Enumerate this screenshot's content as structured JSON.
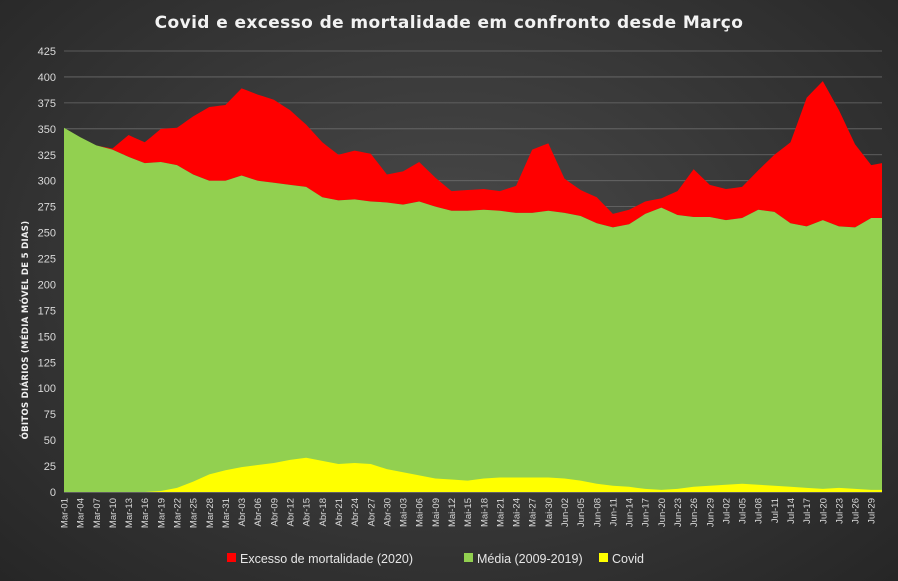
{
  "chart_data": {
    "type": "area",
    "title": "Covid  e  excesso  de  mortalidade  em  confronto  desde  Março",
    "ylabel": "ÓBITOS DIÁRIOS  (MÉDIA MÓVEL DE 5 DIAS)",
    "ylim": [
      0,
      425
    ],
    "yticks": [
      0,
      25,
      50,
      75,
      100,
      125,
      150,
      175,
      200,
      225,
      250,
      275,
      300,
      325,
      350,
      375,
      400,
      425
    ],
    "x_start": "Mar-01",
    "x_end": "Jul-31",
    "x_tick_labels": [
      "Mar-01",
      "Mar-04",
      "Mar-07",
      "Mar-10",
      "Mar-13",
      "Mar-16",
      "Mar-19",
      "Mar-22",
      "Mar-25",
      "Mar-28",
      "Mar-31",
      "Abr-03",
      "Abr-06",
      "Abr-09",
      "Abr-12",
      "Abr-15",
      "Abr-18",
      "Abr-21",
      "Abr-24",
      "Abr-27",
      "Abr-30",
      "Mai-03",
      "Mai-06",
      "Mai-09",
      "Mai-12",
      "Mai-15",
      "Mai-18",
      "Mai-21",
      "Mai-24",
      "Mai-27",
      "Mai-30",
      "Jun-02",
      "Jun-05",
      "Jun-08",
      "Jun-11",
      "Jun-14",
      "Jun-17",
      "Jun-20",
      "Jun-23",
      "Jun-26",
      "Jun-29",
      "Jul-02",
      "Jul-05",
      "Jul-08",
      "Jul-11",
      "Jul-14",
      "Jul-17",
      "Jul-20",
      "Jul-23",
      "Jul-26",
      "Jul-29"
    ],
    "legend_position": "bottom",
    "grid": true,
    "series": [
      {
        "name": "Excesso de mortalidade (2020)",
        "color": "#ff0000",
        "description": "Total 2020 (top of red area)",
        "points": [
          [
            "Mar-01",
            351
          ],
          [
            "Mar-04",
            342
          ],
          [
            "Mar-07",
            334
          ],
          [
            "Mar-10",
            331
          ],
          [
            "Mar-13",
            344
          ],
          [
            "Mar-16",
            337
          ],
          [
            "Mar-19",
            350
          ],
          [
            "Mar-22",
            351
          ],
          [
            "Mar-25",
            362
          ],
          [
            "Mar-28",
            371
          ],
          [
            "Mar-31",
            373
          ],
          [
            "Abr-03",
            389
          ],
          [
            "Abr-06",
            383
          ],
          [
            "Abr-09",
            378
          ],
          [
            "Abr-12",
            368
          ],
          [
            "Abr-15",
            354
          ],
          [
            "Abr-18",
            337
          ],
          [
            "Abr-21",
            325
          ],
          [
            "Abr-24",
            329
          ],
          [
            "Abr-27",
            326
          ],
          [
            "Abr-30",
            306
          ],
          [
            "Mai-03",
            309
          ],
          [
            "Mai-06",
            318
          ],
          [
            "Mai-09",
            303
          ],
          [
            "Mai-12",
            290
          ],
          [
            "Mai-15",
            291
          ],
          [
            "Mai-18",
            292
          ],
          [
            "Mai-21",
            290
          ],
          [
            "Mai-24",
            295
          ],
          [
            "Mai-27",
            330
          ],
          [
            "Mai-30",
            336
          ],
          [
            "Jun-02",
            302
          ],
          [
            "Jun-05",
            291
          ],
          [
            "Jun-08",
            284
          ],
          [
            "Jun-11",
            268
          ],
          [
            "Jun-14",
            272
          ],
          [
            "Jun-17",
            280
          ],
          [
            "Jun-20",
            283
          ],
          [
            "Jun-23",
            290
          ],
          [
            "Jun-26",
            311
          ],
          [
            "Jun-29",
            296
          ],
          [
            "Jul-02",
            292
          ],
          [
            "Jul-05",
            294
          ],
          [
            "Jul-08",
            310
          ],
          [
            "Jul-11",
            325
          ],
          [
            "Jul-14",
            337
          ],
          [
            "Jul-17",
            380
          ],
          [
            "Jul-20",
            396
          ],
          [
            "Jul-23",
            368
          ],
          [
            "Jul-26",
            335
          ],
          [
            "Jul-29",
            315
          ],
          [
            "Jul-31",
            317
          ]
        ]
      },
      {
        "name": "Média (2009-2019)",
        "color": "#92d050",
        "points": [
          [
            "Mar-01",
            351
          ],
          [
            "Mar-04",
            342
          ],
          [
            "Mar-07",
            334
          ],
          [
            "Mar-10",
            330
          ],
          [
            "Mar-13",
            323
          ],
          [
            "Mar-16",
            317
          ],
          [
            "Mar-19",
            318
          ],
          [
            "Mar-22",
            315
          ],
          [
            "Mar-25",
            306
          ],
          [
            "Mar-28",
            300
          ],
          [
            "Mar-31",
            300
          ],
          [
            "Abr-03",
            305
          ],
          [
            "Abr-06",
            300
          ],
          [
            "Abr-09",
            298
          ],
          [
            "Abr-12",
            296
          ],
          [
            "Abr-15",
            294
          ],
          [
            "Abr-18",
            284
          ],
          [
            "Abr-21",
            281
          ],
          [
            "Abr-24",
            282
          ],
          [
            "Abr-27",
            280
          ],
          [
            "Abr-30",
            279
          ],
          [
            "Mai-03",
            277
          ],
          [
            "Mai-06",
            280
          ],
          [
            "Mai-09",
            275
          ],
          [
            "Mai-12",
            271
          ],
          [
            "Mai-15",
            271
          ],
          [
            "Mai-18",
            272
          ],
          [
            "Mai-21",
            271
          ],
          [
            "Mai-24",
            269
          ],
          [
            "Mai-27",
            269
          ],
          [
            "Mai-30",
            271
          ],
          [
            "Jun-02",
            269
          ],
          [
            "Jun-05",
            266
          ],
          [
            "Jun-08",
            259
          ],
          [
            "Jun-11",
            255
          ],
          [
            "Jun-14",
            258
          ],
          [
            "Jun-17",
            268
          ],
          [
            "Jun-20",
            274
          ],
          [
            "Jun-23",
            267
          ],
          [
            "Jun-26",
            265
          ],
          [
            "Jun-29",
            265
          ],
          [
            "Jul-02",
            262
          ],
          [
            "Jul-05",
            264
          ],
          [
            "Jul-08",
            272
          ],
          [
            "Jul-11",
            270
          ],
          [
            "Jul-14",
            259
          ],
          [
            "Jul-17",
            256
          ],
          [
            "Jul-20",
            262
          ],
          [
            "Jul-23",
            256
          ],
          [
            "Jul-26",
            255
          ],
          [
            "Jul-29",
            264
          ],
          [
            "Jul-31",
            264
          ]
        ]
      },
      {
        "name": "Covid",
        "color": "#ffff00",
        "points": [
          [
            "Mar-01",
            0
          ],
          [
            "Mar-13",
            0
          ],
          [
            "Mar-16",
            0
          ],
          [
            "Mar-19",
            1
          ],
          [
            "Mar-22",
            4
          ],
          [
            "Mar-25",
            10
          ],
          [
            "Mar-28",
            17
          ],
          [
            "Mar-31",
            21
          ],
          [
            "Abr-03",
            24
          ],
          [
            "Abr-06",
            26
          ],
          [
            "Abr-09",
            28
          ],
          [
            "Abr-12",
            31
          ],
          [
            "Abr-15",
            33
          ],
          [
            "Abr-18",
            30
          ],
          [
            "Abr-21",
            27
          ],
          [
            "Abr-24",
            28
          ],
          [
            "Abr-27",
            27
          ],
          [
            "Abr-30",
            22
          ],
          [
            "Mai-03",
            19
          ],
          [
            "Mai-06",
            16
          ],
          [
            "Mai-09",
            13
          ],
          [
            "Mai-12",
            12
          ],
          [
            "Mai-15",
            11
          ],
          [
            "Mai-18",
            13
          ],
          [
            "Mai-21",
            14
          ],
          [
            "Mai-24",
            14
          ],
          [
            "Mai-27",
            14
          ],
          [
            "Mai-30",
            14
          ],
          [
            "Jun-02",
            13
          ],
          [
            "Jun-05",
            11
          ],
          [
            "Jun-08",
            8
          ],
          [
            "Jun-11",
            6
          ],
          [
            "Jun-14",
            5
          ],
          [
            "Jun-17",
            3
          ],
          [
            "Jun-20",
            2
          ],
          [
            "Jun-23",
            3
          ],
          [
            "Jun-26",
            5
          ],
          [
            "Jun-29",
            6
          ],
          [
            "Jul-02",
            7
          ],
          [
            "Jul-05",
            8
          ],
          [
            "Jul-08",
            7
          ],
          [
            "Jul-11",
            6
          ],
          [
            "Jul-14",
            5
          ],
          [
            "Jul-17",
            4
          ],
          [
            "Jul-20",
            3
          ],
          [
            "Jul-23",
            4
          ],
          [
            "Jul-26",
            3
          ],
          [
            "Jul-29",
            2
          ],
          [
            "Jul-31",
            2
          ]
        ]
      }
    ]
  }
}
